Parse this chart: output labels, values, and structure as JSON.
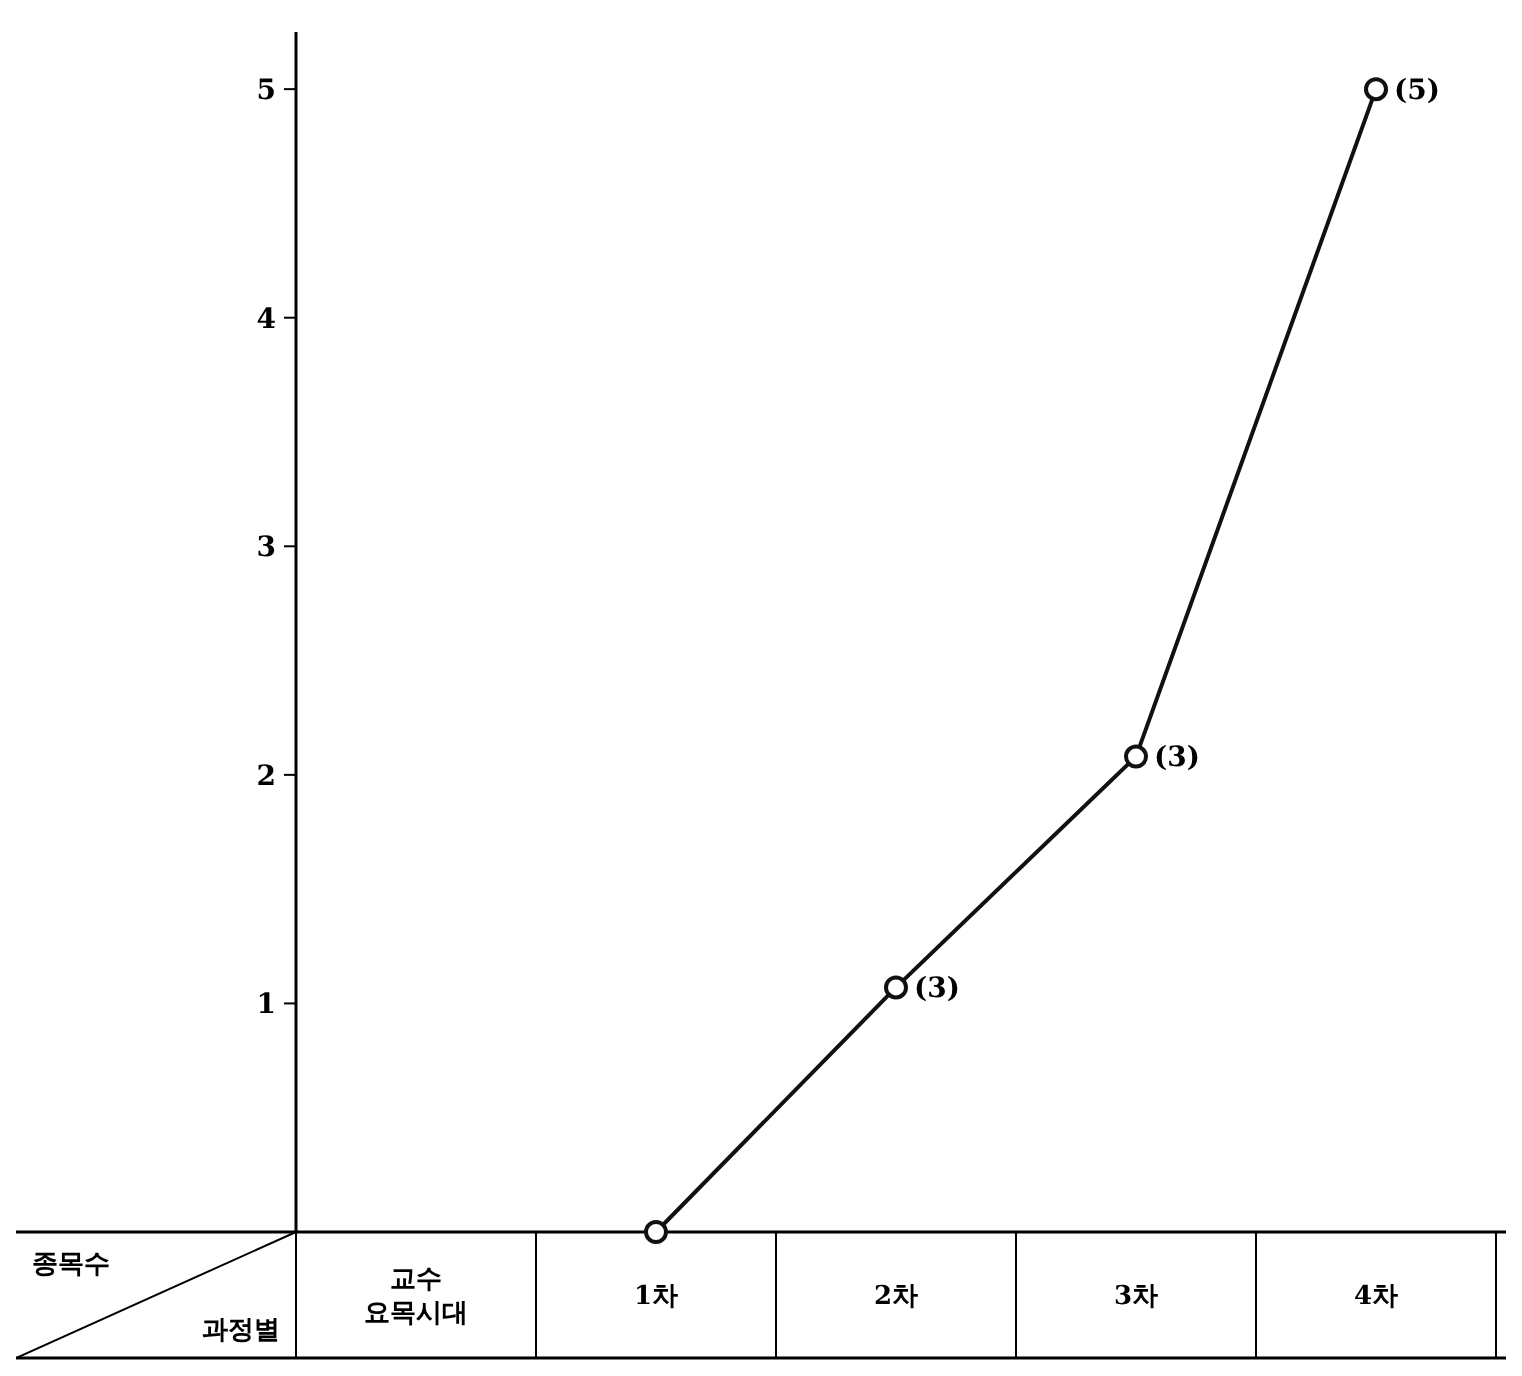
{
  "chart_data": {
    "type": "line",
    "categories": [
      "교수 요목시대",
      "1차",
      "2차",
      "3차",
      "4차",
      null
    ],
    "series": [
      {
        "color": "#111111",
        "values": [
          null,
          0,
          1.07,
          2.08,
          5.0,
          null
        ]
      }
    ],
    "ylim": [
      0,
      5.25
    ],
    "yticks": [
      1,
      2,
      3,
      4,
      5
    ],
    "grid": false,
    "marker": "circle",
    "line_style": "solid",
    "annotations": [
      "종목수",
      "과정별",
      {
        "text": "(3)",
        "x": "2차",
        "y": 1.07
      },
      {
        "text": "(3)",
        "x": "3차",
        "y": 2.08
      },
      {
        "text": "(5)",
        "x": "4차",
        "y": 5.0
      }
    ]
  }
}
